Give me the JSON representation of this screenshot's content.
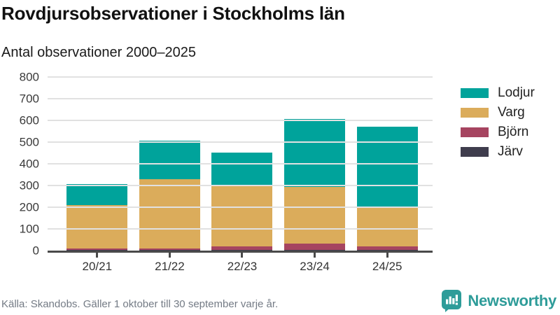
{
  "header": {
    "title": "Rovdjursobservationer i Stockholms län",
    "subtitle": "Antal observationer 2000–2025"
  },
  "footer": {
    "source": "Källa: Skandobs. Gäller 1 oktober till 30 september varje år."
  },
  "branding": {
    "name": "Newsworthy",
    "color": "#2e9c99",
    "icon": "bar-chart-speech-bubble-icon"
  },
  "colors": {
    "lodjur": "#00a39b",
    "varg": "#dbac5b",
    "bjorn": "#a64460",
    "jarv": "#3f3d4d",
    "axis": "#4a4a4a",
    "gridline": "#e1e1e1"
  },
  "chart_data": {
    "type": "bar",
    "stacked": true,
    "title": "Rovdjursobservationer i Stockholms län",
    "subtitle": "Antal observationer 2000–2025",
    "categories": [
      "20/21",
      "21/22",
      "22/23",
      "23/24",
      "24/25"
    ],
    "series": [
      {
        "name": "Lodjur",
        "color": "#00a39b",
        "values": [
          97,
          176,
          157,
          313,
          372
        ]
      },
      {
        "name": "Varg",
        "color": "#dbac5b",
        "values": [
          201,
          318,
          278,
          261,
          178
        ]
      },
      {
        "name": "Björn",
        "color": "#a64460",
        "values": [
          8,
          9,
          15,
          30,
          16
        ]
      },
      {
        "name": "Järv",
        "color": "#3f3d4d",
        "values": [
          2,
          2,
          3,
          3,
          4
        ]
      }
    ],
    "totals": [
      308,
      505,
      453,
      607,
      570
    ],
    "xlabel": "",
    "ylabel": "",
    "ylim": [
      0,
      800
    ],
    "yticks": [
      0,
      100,
      200,
      300,
      400,
      500,
      600,
      700,
      800
    ],
    "grid": true,
    "legend_position": "right",
    "stack_order_bottom_to_top": [
      "Järv",
      "Björn",
      "Varg",
      "Lodjur"
    ]
  }
}
